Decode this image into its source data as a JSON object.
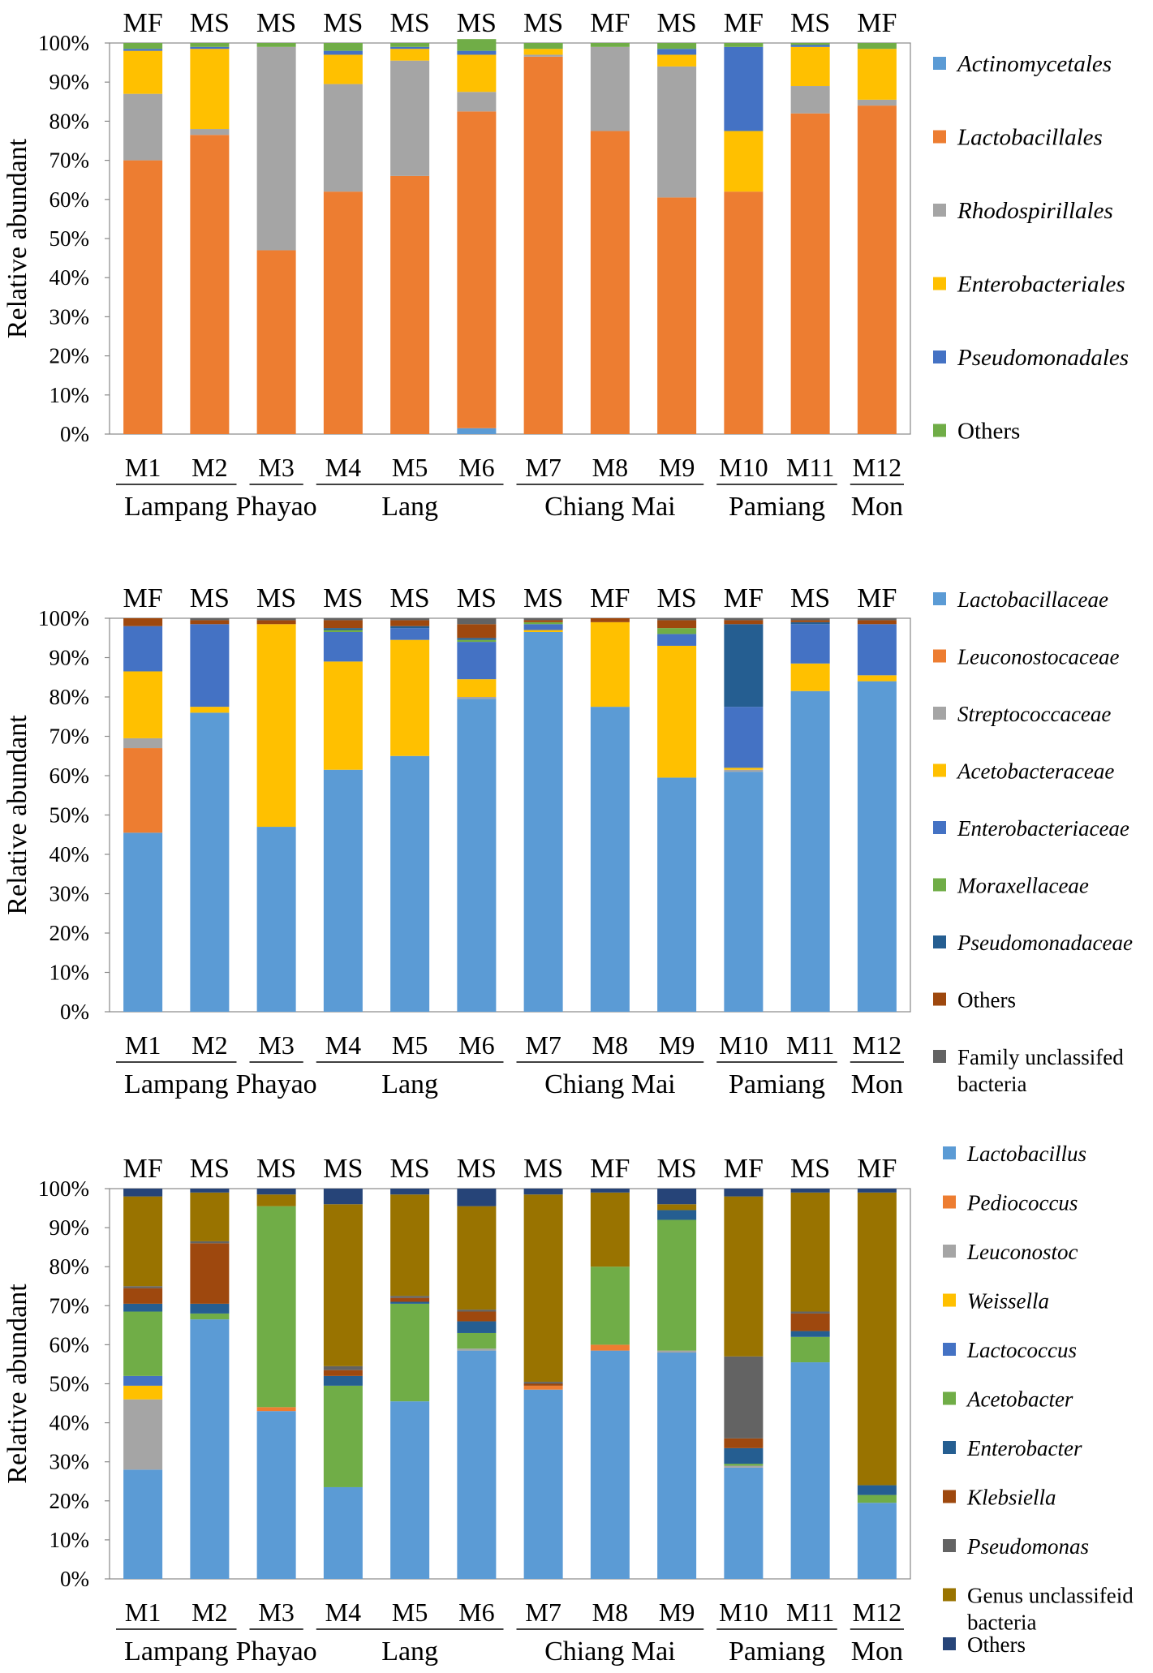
{
  "figure": {
    "ylabel": "Relative abundant",
    "yticks": [
      "0%",
      "10%",
      "20%",
      "30%",
      "40%",
      "50%",
      "60%",
      "70%",
      "80%",
      "90%",
      "100%"
    ],
    "samples": [
      "M1",
      "M2",
      "M3",
      "M4",
      "M5",
      "M6",
      "M7",
      "M8",
      "M9",
      "M10",
      "M11",
      "M12"
    ],
    "sample_types": [
      "MF",
      "MS",
      "MS",
      "MS",
      "MS",
      "MS",
      "MS",
      "MF",
      "MS",
      "MF",
      "MS",
      "MF"
    ],
    "regions": [
      {
        "name": "Lampang",
        "from": 0,
        "to": 1
      },
      {
        "name": "Phayao",
        "from": 2,
        "to": 2
      },
      {
        "name": "Lang",
        "from": 3,
        "to": 5
      },
      {
        "name": "Chiang Mai",
        "from": 6,
        "to": 8
      },
      {
        "name": "Pamiang",
        "from": 9,
        "to": 10
      },
      {
        "name": "Mon",
        "from": 11,
        "to": 11
      }
    ]
  },
  "chart_data": [
    {
      "type": "bar",
      "stacked": true,
      "title": "",
      "xlabel": "",
      "ylabel": "Relative abundant",
      "ylim": [
        0,
        100
      ],
      "categories": [
        "M1",
        "M2",
        "M3",
        "M4",
        "M5",
        "M6",
        "M7",
        "M8",
        "M9",
        "M10",
        "M11",
        "M12"
      ],
      "top_labels": [
        "MF",
        "MS",
        "MS",
        "MS",
        "MS",
        "MS",
        "MS",
        "MF",
        "MS",
        "MF",
        "MS",
        "MF"
      ],
      "series": [
        {
          "name": "Actinomycetales",
          "italic": true,
          "color": "#5B9BD5",
          "values": [
            0,
            0,
            0,
            0,
            0,
            1.5,
            0,
            0,
            0,
            0,
            0,
            0
          ]
        },
        {
          "name": "Lactobacillales",
          "italic": true,
          "color": "#ED7D31",
          "values": [
            70,
            76.5,
            47,
            62,
            66,
            81,
            96.5,
            77.5,
            60.5,
            62,
            82,
            84
          ]
        },
        {
          "name": "Rhodospirillales",
          "italic": true,
          "color": "#A5A5A5",
          "values": [
            17,
            1.5,
            52,
            27.5,
            29.5,
            5,
            0.5,
            21.5,
            33.5,
            0,
            7,
            1.5
          ]
        },
        {
          "name": "Enterobacteriales",
          "italic": true,
          "color": "#FFC000",
          "values": [
            11,
            20.5,
            0,
            7.5,
            3,
            9.5,
            1.5,
            0,
            3,
            15.5,
            10,
            13
          ]
        },
        {
          "name": "Pseudomonadales",
          "italic": true,
          "color": "#4472C4",
          "values": [
            0.5,
            0.5,
            0,
            1,
            0.5,
            1,
            0,
            0,
            1.5,
            21.5,
            0.5,
            0
          ]
        },
        {
          "name": "Others",
          "italic": false,
          "color": "#70AD47",
          "values": [
            1.5,
            1,
            1,
            2,
            1,
            3,
            1.5,
            1,
            1.5,
            1,
            0.5,
            1.5
          ]
        }
      ]
    },
    {
      "type": "bar",
      "stacked": true,
      "title": "",
      "xlabel": "",
      "ylabel": "Relative abundant",
      "ylim": [
        0,
        100
      ],
      "categories": [
        "M1",
        "M2",
        "M3",
        "M4",
        "M5",
        "M6",
        "M7",
        "M8",
        "M9",
        "M10",
        "M11",
        "M12"
      ],
      "top_labels": [
        "MF",
        "MS",
        "MS",
        "MS",
        "MS",
        "MS",
        "MS",
        "MF",
        "MS",
        "MF",
        "MS",
        "MF"
      ],
      "series": [
        {
          "name": "Lactobacillaceae",
          "italic": true,
          "color": "#5B9BD5",
          "values": [
            45.5,
            76,
            47,
            61.5,
            65,
            79.5,
            96.5,
            77.5,
            59.5,
            61,
            81.5,
            84
          ]
        },
        {
          "name": "Leuconostocaceae",
          "italic": true,
          "color": "#ED7D31",
          "values": [
            21.5,
            0,
            0,
            0,
            0,
            0,
            0,
            0,
            0,
            0,
            0,
            0
          ]
        },
        {
          "name": "Streptococcaceae",
          "italic": true,
          "color": "#A5A5A5",
          "values": [
            2.5,
            0,
            0,
            0,
            0,
            0.5,
            0,
            0,
            0,
            0.5,
            0,
            0
          ]
        },
        {
          "name": "Acetobacteraceae",
          "italic": true,
          "color": "#FFC000",
          "values": [
            17,
            1.5,
            51.5,
            27.5,
            29.5,
            4.5,
            0.5,
            21.5,
            33.5,
            0.5,
            7,
            1.5
          ]
        },
        {
          "name": "Enterobacteriaceae",
          "italic": true,
          "color": "#4472C4",
          "values": [
            11.5,
            21,
            0,
            7.5,
            3,
            9.5,
            1.5,
            0,
            3,
            15.5,
            10,
            13
          ]
        },
        {
          "name": "Moraxellaceae",
          "italic": true,
          "color": "#70AD47",
          "values": [
            0,
            0,
            0,
            0.5,
            0,
            0.5,
            0.5,
            0,
            1.5,
            0,
            0,
            0
          ]
        },
        {
          "name": "Pseudomonadaceae",
          "italic": true,
          "color": "#255E91",
          "values": [
            0,
            0,
            0,
            0.5,
            0.5,
            0.5,
            0,
            0,
            0,
            21,
            0.5,
            0
          ]
        },
        {
          "name": "Others",
          "italic": false,
          "color": "#9E480E",
          "values": [
            2,
            1,
            1,
            2,
            1.5,
            3.5,
            0.5,
            1,
            2,
            1,
            0.5,
            1
          ]
        },
        {
          "name": "Family unclassifed bacteria",
          "italic": false,
          "color": "#636363",
          "values": [
            0,
            0.5,
            0.5,
            0.5,
            0.5,
            1.5,
            0.5,
            0,
            0.5,
            0.5,
            0.5,
            0.5
          ]
        }
      ]
    },
    {
      "type": "bar",
      "stacked": true,
      "title": "",
      "xlabel": "",
      "ylabel": "Relative abundant",
      "ylim": [
        0,
        100
      ],
      "categories": [
        "M1",
        "M2",
        "M3",
        "M4",
        "M5",
        "M6",
        "M7",
        "M8",
        "M9",
        "M10",
        "M11",
        "M12"
      ],
      "top_labels": [
        "MF",
        "MS",
        "MS",
        "MS",
        "MS",
        "MS",
        "MS",
        "MF",
        "MS",
        "MF",
        "MS",
        "MF"
      ],
      "series": [
        {
          "name": "Lactobacillus",
          "italic": true,
          "color": "#5B9BD5",
          "values": [
            28,
            66.5,
            43,
            23.5,
            45.5,
            58.5,
            48.5,
            58.5,
            58,
            28.5,
            55.5,
            19.5
          ]
        },
        {
          "name": "Pediococcus",
          "italic": true,
          "color": "#ED7D31",
          "values": [
            0,
            0,
            1,
            0,
            0,
            0,
            1,
            1.5,
            0,
            0,
            0,
            0
          ]
        },
        {
          "name": "Leuconostoc",
          "italic": true,
          "color": "#A5A5A5",
          "values": [
            18,
            0,
            0,
            0,
            0,
            0.5,
            0,
            0,
            0.5,
            0.5,
            0,
            0
          ]
        },
        {
          "name": "Weissella",
          "italic": true,
          "color": "#FFC000",
          "values": [
            3.5,
            0,
            0,
            0,
            0,
            0,
            0,
            0,
            0,
            0,
            0,
            0
          ]
        },
        {
          "name": "Lactococcus",
          "italic": true,
          "color": "#4472C4",
          "values": [
            2.5,
            0,
            0,
            0,
            0,
            0,
            0,
            0,
            0,
            0,
            0,
            0
          ]
        },
        {
          "name": "Acetobacter",
          "italic": true,
          "color": "#70AD47",
          "values": [
            16.5,
            1.5,
            51.5,
            26,
            25,
            4,
            0,
            20,
            33.5,
            0.5,
            6.5,
            2
          ]
        },
        {
          "name": "Enterobacter",
          "italic": true,
          "color": "#255E91",
          "values": [
            2,
            2.5,
            0,
            2.5,
            0.5,
            3,
            0,
            0,
            2.5,
            4,
            1.5,
            2.5
          ]
        },
        {
          "name": "Klebsiella",
          "italic": true,
          "color": "#9E480E",
          "values": [
            4,
            15.5,
            0,
            1.5,
            1,
            2.5,
            0.5,
            0,
            0,
            2.5,
            4.5,
            0
          ]
        },
        {
          "name": "Pseudomonas",
          "italic": true,
          "color": "#636363",
          "values": [
            0.5,
            0.5,
            0,
            1,
            0.5,
            0.5,
            0.5,
            0,
            0,
            21,
            0.5,
            0
          ]
        },
        {
          "name": "Genus unclassifeid bacteria",
          "italic": false,
          "color": "#997300",
          "values": [
            23,
            12.5,
            3,
            41.5,
            26,
            26.5,
            48,
            19,
            1.5,
            41,
            30.5,
            75
          ]
        },
        {
          "name": "Others",
          "italic": false,
          "color": "#264478",
          "values": [
            2,
            1,
            1.5,
            4,
            1.5,
            4.5,
            1.5,
            1,
            4,
            2,
            1,
            1
          ]
        }
      ]
    }
  ]
}
